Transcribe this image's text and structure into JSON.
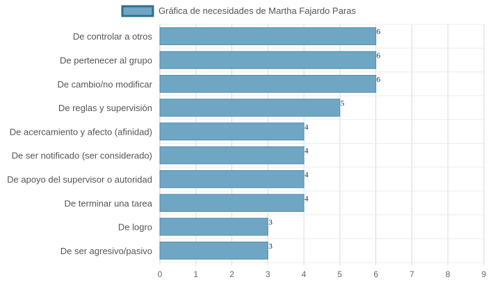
{
  "chart_data": {
    "type": "bar",
    "orientation": "horizontal",
    "title": "",
    "legend": {
      "label": "Gráfica de necesidades de Martha Fajardo Paras",
      "position": "top-center"
    },
    "categories": [
      "De controlar a otros",
      "De pertenecer al grupo",
      "De cambio/no modificar",
      "De reglas y supervisión",
      "De acercamiento y afecto (afinidad)",
      "De ser notificado (ser considerado)",
      "De apoyo del supervisor o autoridad",
      "De terminar una tarea",
      "De logro",
      "De ser agresivo/pasivo"
    ],
    "series": [
      {
        "name": "Gráfica de necesidades de Martha Fajardo Paras",
        "values": [
          6,
          6,
          6,
          5,
          4,
          4,
          4,
          4,
          3,
          3
        ]
      }
    ],
    "xlim": [
      0,
      9
    ],
    "xticks": [
      0,
      1,
      2,
      3,
      4,
      5,
      6,
      7,
      8,
      9
    ],
    "grid": true,
    "data_labels": true,
    "colors": {
      "bar_fill": "#6fa6c4",
      "bar_stroke": "#4f8db0",
      "grid": "#d9d9d9",
      "legend_border": "#2e6f93"
    }
  }
}
